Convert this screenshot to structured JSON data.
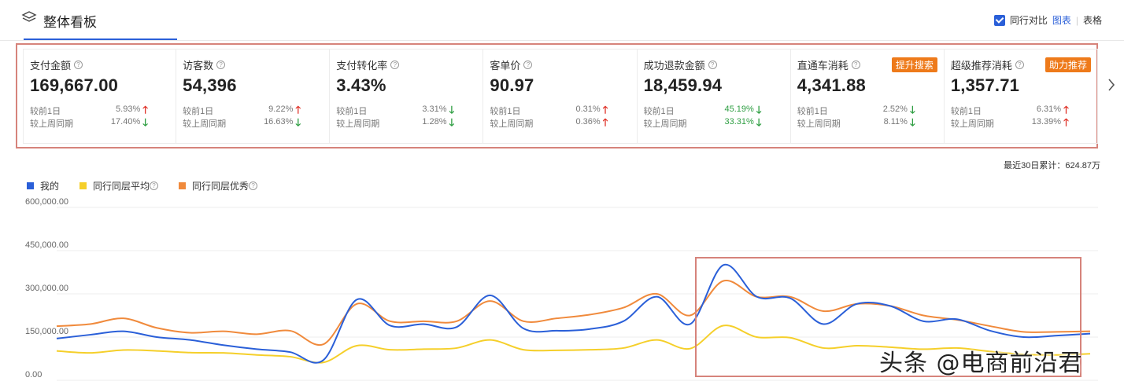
{
  "header": {
    "title": "整体看板",
    "compare_label": "同行对比",
    "view_chart": "图表",
    "view_separator": "|",
    "view_table": "表格"
  },
  "metrics": [
    {
      "label": "支付金额",
      "value": "169,667.00",
      "row1_label": "较前1日",
      "row1_value": "5.93%",
      "row1_dir": "up",
      "row2_label": "较上周同期",
      "row2_value": "17.40%",
      "row2_dir": "down",
      "badge": ""
    },
    {
      "label": "访客数",
      "value": "54,396",
      "row1_label": "较前1日",
      "row1_value": "9.22%",
      "row1_dir": "up",
      "row2_label": "较上周同期",
      "row2_value": "16.63%",
      "row2_dir": "down",
      "badge": ""
    },
    {
      "label": "支付转化率",
      "value": "3.43%",
      "row1_label": "较前1日",
      "row1_value": "3.31%",
      "row1_dir": "down",
      "row2_label": "较上周同期",
      "row2_value": "1.28%",
      "row2_dir": "down",
      "badge": ""
    },
    {
      "label": "客单价",
      "value": "90.97",
      "row1_label": "较前1日",
      "row1_value": "0.31%",
      "row1_dir": "up",
      "row2_label": "较上周同期",
      "row2_value": "0.36%",
      "row2_dir": "up",
      "badge": ""
    },
    {
      "label": "成功退款金额",
      "value": "18,459.94",
      "row1_label": "较前1日",
      "row1_value": "45.19%",
      "row1_dir": "down",
      "row2_label": "较上周同期",
      "row2_value": "33.31%",
      "row2_dir": "down",
      "badge": ""
    },
    {
      "label": "直通车消耗",
      "value": "4,341.88",
      "row1_label": "较前1日",
      "row1_value": "2.52%",
      "row1_dir": "down",
      "row2_label": "较上周同期",
      "row2_value": "8.11%",
      "row2_dir": "down",
      "badge": "提升搜索"
    },
    {
      "label": "超级推荐消耗",
      "value": "1,357.71",
      "row1_label": "较前1日",
      "row1_value": "6.31%",
      "row1_dir": "up",
      "row2_label": "较上周同期",
      "row2_value": "13.39%",
      "row2_dir": "up",
      "badge": "助力推荐"
    }
  ],
  "summary": {
    "total_label": "最近30日累计：624.87万"
  },
  "colors": {
    "mine": "#2a5fd8",
    "avg": "#f5cf2a",
    "excellent": "#f08a3c",
    "up": "#e0352b",
    "down": "#2e9e42"
  },
  "watermark": "头条 @电商前沿君",
  "chart_data": {
    "type": "line",
    "y_ticks": [
      "0.00",
      "150,000.00",
      "300,000.00",
      "450,000.00",
      "600,000.00"
    ],
    "ylim": [
      0,
      600000
    ],
    "grid": true,
    "legend_position": "top-left",
    "series": [
      {
        "name": "我的",
        "values": [
          145000,
          158000,
          170000,
          150000,
          140000,
          122000,
          108000,
          98000,
          70000,
          280000,
          190000,
          195000,
          185000,
          295000,
          180000,
          172000,
          178000,
          205000,
          290000,
          195000,
          400000,
          290000,
          285000,
          195000,
          265000,
          258000,
          205000,
          212000,
          172000,
          150000,
          155000,
          162000
        ]
      },
      {
        "name": "同行同层平均",
        "values": [
          102000,
          95000,
          105000,
          102000,
          96000,
          95000,
          88000,
          82000,
          62000,
          120000,
          106000,
          108000,
          112000,
          140000,
          106000,
          104000,
          106000,
          112000,
          140000,
          110000,
          190000,
          150000,
          148000,
          112000,
          120000,
          115000,
          108000,
          112000,
          100000,
          90000,
          88000,
          92000
        ]
      },
      {
        "name": "同行同层优秀",
        "values": [
          188000,
          195000,
          215000,
          182000,
          165000,
          170000,
          160000,
          172000,
          125000,
          265000,
          205000,
          205000,
          205000,
          275000,
          205000,
          215000,
          228000,
          252000,
          300000,
          225000,
          345000,
          290000,
          290000,
          240000,
          265000,
          258000,
          225000,
          210000,
          188000,
          168000,
          168000,
          170000
        ]
      }
    ]
  }
}
